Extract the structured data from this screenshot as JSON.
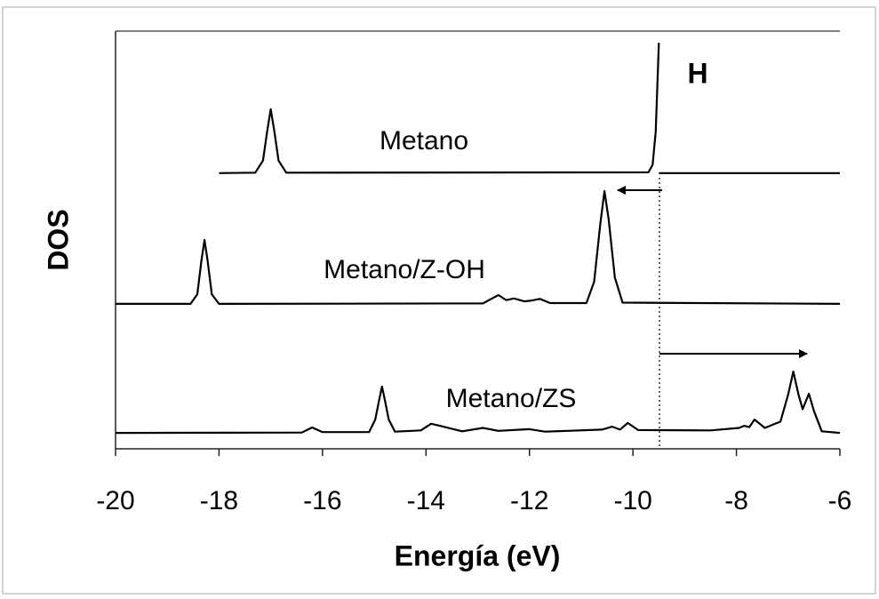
{
  "chart_data": {
    "type": "line",
    "xlabel": "Energía (eV)",
    "ylabel": "DOS",
    "xlim": [
      -20,
      -6
    ],
    "xticks": [
      -20,
      -18,
      -16,
      -14,
      -12,
      -10,
      -8,
      -6
    ],
    "ylim": [
      0,
      100
    ],
    "annotations": [
      {
        "text": "H"
      }
    ],
    "series": [
      {
        "name": "Metano",
        "color": "#000000",
        "x": [
          -18,
          -17.3,
          -17.15,
          -17.07,
          -17.0,
          -16.93,
          -16.85,
          -16.7,
          -9.7,
          -9.62,
          -9.56,
          -9.5,
          -9.5,
          -9.5,
          -6
        ],
        "values": [
          66,
          66.1,
          69,
          76,
          81.3,
          76,
          69,
          66.1,
          66.2,
          68,
          76,
          97.2,
          null,
          66,
          66
        ]
      },
      {
        "name": "Metano/Z-OH",
        "color": "#000000",
        "x": [
          -20,
          -18.55,
          -18.42,
          -18.34,
          -18.28,
          -18.22,
          -18.14,
          -18.0,
          -12.9,
          -12.75,
          -12.6,
          -12.45,
          -12.3,
          -12.1,
          -11.95,
          -11.8,
          -11.6,
          -10.9,
          -10.75,
          -10.63,
          -10.55,
          -10.47,
          -10.35,
          -10.2,
          -6
        ],
        "values": [
          34.7,
          34.7,
          37,
          45,
          50,
          45,
          37,
          34.7,
          34.8,
          35.8,
          36.8,
          35.6,
          36,
          35.3,
          35.5,
          35.9,
          34.9,
          34.9,
          40,
          54,
          61.7,
          55,
          41,
          35,
          34.7
        ]
      },
      {
        "name": "Metano/ZS",
        "color": "#000000",
        "x": [
          -20,
          -16.4,
          -16.2,
          -16.0,
          -15.1,
          -14.98,
          -14.9,
          -14.85,
          -14.8,
          -14.72,
          -14.6,
          -14.1,
          -13.9,
          -13.7,
          -13.3,
          -12.9,
          -12.6,
          -12.0,
          -11.7,
          -10.6,
          -10.4,
          -10.25,
          -10.1,
          -9.9,
          -8.5,
          -7.95,
          -7.85,
          -7.75,
          -7.65,
          -7.45,
          -7.15,
          -7.0,
          -6.9,
          -6.8,
          -6.72,
          -6.6,
          -6.5,
          -6.35,
          -6.0
        ],
        "values": [
          3.8,
          3.9,
          5.1,
          4.0,
          4.0,
          7,
          12,
          14.9,
          12,
          7,
          4.1,
          4.4,
          6.0,
          5.4,
          4.2,
          5.0,
          4.3,
          4.7,
          4.1,
          4.6,
          5.3,
          4.6,
          6.2,
          4.5,
          4.4,
          5.0,
          5.5,
          5.2,
          7.0,
          5.0,
          6.5,
          13,
          18.5,
          13,
          9.5,
          13.2,
          9,
          4.2,
          3.8
        ]
      }
    ]
  }
}
